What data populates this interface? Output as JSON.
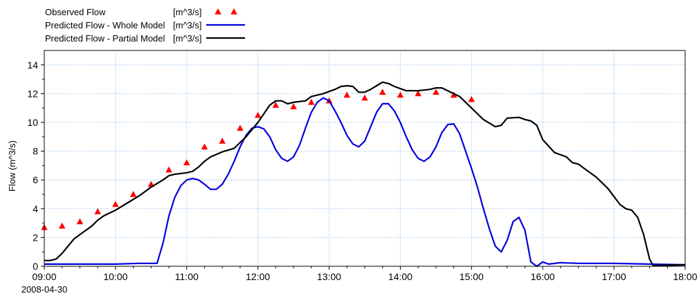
{
  "chart_data": {
    "type": "line",
    "title": "",
    "ylabel": "Flow (m^3/s)",
    "xlabel": "",
    "date_label": "2008-04-30",
    "xlim": [
      "09:00",
      "18:00"
    ],
    "ylim": [
      0,
      15
    ],
    "x_ticks": [
      "09:00",
      "10:00",
      "11:00",
      "12:00",
      "13:00",
      "14:00",
      "15:00",
      "16:00",
      "17:00",
      "18:00"
    ],
    "y_ticks": [
      0,
      2,
      4,
      6,
      8,
      10,
      12,
      14
    ],
    "grid": true,
    "legend_position": "top-left",
    "series": [
      {
        "name": "Observed Flow",
        "unit": "[m^3/s]",
        "style": "markers",
        "color": "#ff0000",
        "points": [
          [
            "09:00",
            2.7
          ],
          [
            "09:15",
            2.8
          ],
          [
            "09:30",
            3.1
          ],
          [
            "09:45",
            3.8
          ],
          [
            "10:00",
            4.3
          ],
          [
            "10:15",
            5.0
          ],
          [
            "10:30",
            5.7
          ],
          [
            "10:45",
            6.7
          ],
          [
            "11:00",
            7.2
          ],
          [
            "11:15",
            8.3
          ],
          [
            "11:30",
            8.7
          ],
          [
            "11:45",
            9.6
          ],
          [
            "12:00",
            10.5
          ],
          [
            "12:15",
            11.2
          ],
          [
            "12:30",
            11.1
          ],
          [
            "12:45",
            11.4
          ],
          [
            "13:00",
            11.5
          ],
          [
            "13:15",
            11.9
          ],
          [
            "13:30",
            11.7
          ],
          [
            "13:45",
            12.1
          ],
          [
            "14:00",
            11.9
          ],
          [
            "14:15",
            12.0
          ],
          [
            "14:30",
            12.1
          ],
          [
            "14:45",
            11.9
          ],
          [
            "15:00",
            11.6
          ]
        ]
      },
      {
        "name": "Predicted Flow - Whole Model",
        "unit": "[m^3/s]",
        "style": "line",
        "color": "#0000dd",
        "points": [
          [
            "09:00",
            0.15
          ],
          [
            "09:30",
            0.15
          ],
          [
            "10:00",
            0.15
          ],
          [
            "10:20",
            0.2
          ],
          [
            "10:35",
            0.2
          ],
          [
            "10:40",
            1.6
          ],
          [
            "10:45",
            3.5
          ],
          [
            "10:50",
            4.8
          ],
          [
            "10:55",
            5.6
          ],
          [
            "11:00",
            6.0
          ],
          [
            "11:05",
            6.1
          ],
          [
            "11:10",
            6.0
          ],
          [
            "11:15",
            5.7
          ],
          [
            "11:20",
            5.35
          ],
          [
            "11:25",
            5.35
          ],
          [
            "11:30",
            5.7
          ],
          [
            "11:35",
            6.4
          ],
          [
            "11:40",
            7.3
          ],
          [
            "11:45",
            8.3
          ],
          [
            "11:50",
            9.1
          ],
          [
            "11:55",
            9.6
          ],
          [
            "12:00",
            9.7
          ],
          [
            "12:05",
            9.55
          ],
          [
            "12:10",
            9.0
          ],
          [
            "12:15",
            8.1
          ],
          [
            "12:20",
            7.5
          ],
          [
            "12:25",
            7.3
          ],
          [
            "12:30",
            7.6
          ],
          [
            "12:35",
            8.4
          ],
          [
            "12:40",
            9.6
          ],
          [
            "12:45",
            10.7
          ],
          [
            "12:50",
            11.4
          ],
          [
            "12:55",
            11.7
          ],
          [
            "13:00",
            11.5
          ],
          [
            "13:05",
            10.8
          ],
          [
            "13:10",
            10.0
          ],
          [
            "13:15",
            9.1
          ],
          [
            "13:20",
            8.5
          ],
          [
            "13:25",
            8.3
          ],
          [
            "13:30",
            8.7
          ],
          [
            "13:35",
            9.7
          ],
          [
            "13:40",
            10.7
          ],
          [
            "13:45",
            11.3
          ],
          [
            "13:50",
            11.3
          ],
          [
            "13:55",
            10.8
          ],
          [
            "14:00",
            10.0
          ],
          [
            "14:05",
            9.0
          ],
          [
            "14:10",
            8.1
          ],
          [
            "14:15",
            7.5
          ],
          [
            "14:20",
            7.3
          ],
          [
            "14:25",
            7.6
          ],
          [
            "14:30",
            8.3
          ],
          [
            "14:35",
            9.3
          ],
          [
            "14:40",
            9.85
          ],
          [
            "14:45",
            9.9
          ],
          [
            "14:50",
            9.2
          ],
          [
            "14:55",
            8.0
          ],
          [
            "15:00",
            6.8
          ],
          [
            "15:05",
            5.5
          ],
          [
            "15:10",
            4.0
          ],
          [
            "15:15",
            2.6
          ],
          [
            "15:20",
            1.4
          ],
          [
            "15:25",
            1.0
          ],
          [
            "15:30",
            1.8
          ],
          [
            "15:35",
            3.1
          ],
          [
            "15:40",
            3.4
          ],
          [
            "15:45",
            2.5
          ],
          [
            "15:50",
            0.3
          ],
          [
            "15:55",
            0.0
          ],
          [
            "16:00",
            0.3
          ],
          [
            "16:05",
            0.15
          ],
          [
            "16:15",
            0.25
          ],
          [
            "16:30",
            0.2
          ],
          [
            "17:00",
            0.2
          ],
          [
            "17:30",
            0.15
          ],
          [
            "18:00",
            0.1
          ]
        ]
      },
      {
        "name": "Predicted Flow - Partial Model",
        "unit": "[m^3/s]",
        "style": "line",
        "color": "#000000",
        "points": [
          [
            "09:00",
            0.4
          ],
          [
            "09:05",
            0.4
          ],
          [
            "09:10",
            0.5
          ],
          [
            "09:15",
            0.9
          ],
          [
            "09:20",
            1.4
          ],
          [
            "09:25",
            1.9
          ],
          [
            "09:30",
            2.2
          ],
          [
            "09:35",
            2.5
          ],
          [
            "09:40",
            2.8
          ],
          [
            "09:45",
            3.2
          ],
          [
            "09:50",
            3.5
          ],
          [
            "10:00",
            3.9
          ],
          [
            "10:10",
            4.4
          ],
          [
            "10:20",
            4.9
          ],
          [
            "10:30",
            5.5
          ],
          [
            "10:40",
            6.0
          ],
          [
            "10:45",
            6.3
          ],
          [
            "10:50",
            6.4
          ],
          [
            "11:00",
            6.5
          ],
          [
            "11:05",
            6.6
          ],
          [
            "11:10",
            6.9
          ],
          [
            "11:15",
            7.3
          ],
          [
            "11:20",
            7.6
          ],
          [
            "11:30",
            7.95
          ],
          [
            "11:40",
            8.2
          ],
          [
            "11:45",
            8.6
          ],
          [
            "11:50",
            9.0
          ],
          [
            "12:00",
            10.0
          ],
          [
            "12:10",
            11.2
          ],
          [
            "12:15",
            11.5
          ],
          [
            "12:20",
            11.5
          ],
          [
            "12:25",
            11.3
          ],
          [
            "12:30",
            11.4
          ],
          [
            "12:40",
            11.5
          ],
          [
            "12:45",
            11.8
          ],
          [
            "12:55",
            12.0
          ],
          [
            "13:05",
            12.3
          ],
          [
            "13:10",
            12.5
          ],
          [
            "13:15",
            12.55
          ],
          [
            "13:20",
            12.5
          ],
          [
            "13:25",
            12.1
          ],
          [
            "13:30",
            12.1
          ],
          [
            "13:35",
            12.3
          ],
          [
            "13:40",
            12.55
          ],
          [
            "13:45",
            12.8
          ],
          [
            "13:50",
            12.7
          ],
          [
            "13:55",
            12.5
          ],
          [
            "14:05",
            12.2
          ],
          [
            "14:15",
            12.2
          ],
          [
            "14:25",
            12.3
          ],
          [
            "14:30",
            12.4
          ],
          [
            "14:35",
            12.4
          ],
          [
            "14:40",
            12.2
          ],
          [
            "14:50",
            11.8
          ],
          [
            "15:00",
            11.0
          ],
          [
            "15:05",
            10.6
          ],
          [
            "15:10",
            10.2
          ],
          [
            "15:20",
            9.7
          ],
          [
            "15:25",
            9.8
          ],
          [
            "15:30",
            10.3
          ],
          [
            "15:40",
            10.35
          ],
          [
            "15:45",
            10.2
          ],
          [
            "15:50",
            10.1
          ],
          [
            "15:55",
            9.8
          ],
          [
            "16:00",
            8.8
          ],
          [
            "16:10",
            7.9
          ],
          [
            "16:20",
            7.6
          ],
          [
            "16:25",
            7.2
          ],
          [
            "16:30",
            7.1
          ],
          [
            "16:35",
            6.8
          ],
          [
            "16:45",
            6.2
          ],
          [
            "16:55",
            5.4
          ],
          [
            "17:05",
            4.3
          ],
          [
            "17:10",
            4.0
          ],
          [
            "17:15",
            3.9
          ],
          [
            "17:20",
            3.4
          ],
          [
            "17:25",
            2.2
          ],
          [
            "17:30",
            0.5
          ],
          [
            "17:33",
            0.05
          ],
          [
            "18:00",
            0.1
          ]
        ]
      }
    ]
  }
}
